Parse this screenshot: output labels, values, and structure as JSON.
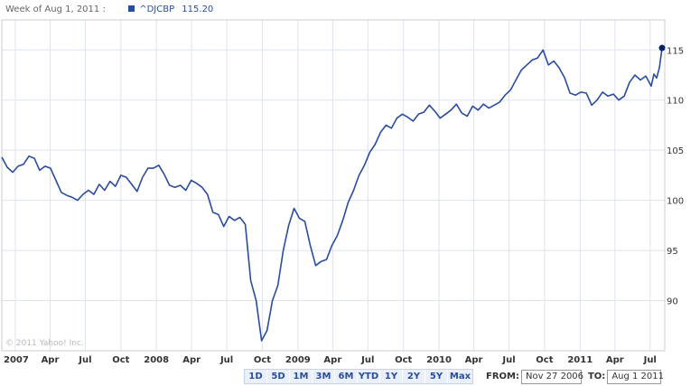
{
  "header": {
    "week_label": "Week of Aug 1, 2011 :",
    "legend_name": "^DJCBP",
    "legend_value": "115.20"
  },
  "copyright": "© 2011 Yahoo! Inc.",
  "colors": {
    "series": "#2a4c9e",
    "grid": "#dde3ef",
    "button_bg": "#eaf0fa",
    "button_text": "#2a4c9e"
  },
  "range_buttons": [
    "1D",
    "5D",
    "1M",
    "3M",
    "6M",
    "YTD",
    "1Y",
    "2Y",
    "5Y",
    "Max"
  ],
  "date_range": {
    "from_label": "FROM:",
    "from_value": "Nov 27 2006",
    "to_label": "TO:",
    "to_value": "Aug 1 2011"
  },
  "chart_data": {
    "type": "line",
    "title": "",
    "xlabel": "",
    "ylabel": "",
    "grid": true,
    "ylim": [
      85,
      118
    ],
    "yticks": [
      90,
      95,
      100,
      105,
      110,
      115
    ],
    "xlim": [
      "2006-11-27",
      "2011-08-08"
    ],
    "xticks": [
      {
        "label": "2007",
        "date": "2007-01-01"
      },
      {
        "label": "Apr",
        "date": "2007-04-01"
      },
      {
        "label": "Jul",
        "date": "2007-07-01"
      },
      {
        "label": "Oct",
        "date": "2007-10-01"
      },
      {
        "label": "2008",
        "date": "2008-01-01"
      },
      {
        "label": "Apr",
        "date": "2008-04-01"
      },
      {
        "label": "Jul",
        "date": "2008-07-01"
      },
      {
        "label": "Oct",
        "date": "2008-10-01"
      },
      {
        "label": "2009",
        "date": "2009-01-01"
      },
      {
        "label": "Apr",
        "date": "2009-04-01"
      },
      {
        "label": "Jul",
        "date": "2009-07-01"
      },
      {
        "label": "Oct",
        "date": "2009-10-01"
      },
      {
        "label": "2010",
        "date": "2010-01-01"
      },
      {
        "label": "Apr",
        "date": "2010-04-01"
      },
      {
        "label": "Jul",
        "date": "2010-07-01"
      },
      {
        "label": "Oct",
        "date": "2010-10-01"
      },
      {
        "label": "2011",
        "date": "2011-01-01"
      },
      {
        "label": "Apr",
        "date": "2011-04-01"
      },
      {
        "label": "Jul",
        "date": "2011-07-01"
      }
    ],
    "series": [
      {
        "name": "^DJCBP",
        "points": [
          [
            "2006-11-27",
            104.3
          ],
          [
            "2006-12-11",
            103.3
          ],
          [
            "2006-12-25",
            102.8
          ],
          [
            "2007-01-08",
            103.4
          ],
          [
            "2007-01-22",
            103.6
          ],
          [
            "2007-02-05",
            104.4
          ],
          [
            "2007-02-19",
            104.2
          ],
          [
            "2007-03-05",
            103.0
          ],
          [
            "2007-03-19",
            103.4
          ],
          [
            "2007-04-02",
            103.2
          ],
          [
            "2007-04-16",
            102.0
          ],
          [
            "2007-04-30",
            100.8
          ],
          [
            "2007-05-14",
            100.5
          ],
          [
            "2007-05-28",
            100.3
          ],
          [
            "2007-06-11",
            100.0
          ],
          [
            "2007-06-25",
            100.6
          ],
          [
            "2007-07-09",
            101.0
          ],
          [
            "2007-07-23",
            100.6
          ],
          [
            "2007-08-06",
            101.6
          ],
          [
            "2007-08-20",
            101.0
          ],
          [
            "2007-09-03",
            101.9
          ],
          [
            "2007-09-17",
            101.4
          ],
          [
            "2007-10-01",
            102.5
          ],
          [
            "2007-10-15",
            102.3
          ],
          [
            "2007-10-29",
            101.6
          ],
          [
            "2007-11-12",
            100.9
          ],
          [
            "2007-11-26",
            102.3
          ],
          [
            "2007-12-10",
            103.2
          ],
          [
            "2007-12-24",
            103.2
          ],
          [
            "2008-01-07",
            103.5
          ],
          [
            "2008-01-21",
            102.6
          ],
          [
            "2008-02-04",
            101.5
          ],
          [
            "2008-02-18",
            101.3
          ],
          [
            "2008-03-03",
            101.5
          ],
          [
            "2008-03-17",
            101.0
          ],
          [
            "2008-03-31",
            102.0
          ],
          [
            "2008-04-14",
            101.7
          ],
          [
            "2008-04-28",
            101.3
          ],
          [
            "2008-05-12",
            100.6
          ],
          [
            "2008-05-26",
            98.8
          ],
          [
            "2008-06-09",
            98.6
          ],
          [
            "2008-06-23",
            97.4
          ],
          [
            "2008-07-07",
            98.4
          ],
          [
            "2008-07-21",
            98.0
          ],
          [
            "2008-08-04",
            98.3
          ],
          [
            "2008-08-18",
            97.6
          ],
          [
            "2008-09-01",
            92.0
          ],
          [
            "2008-09-15",
            90.0
          ],
          [
            "2008-09-29",
            86.0
          ],
          [
            "2008-10-13",
            87.0
          ],
          [
            "2008-10-27",
            90.0
          ],
          [
            "2008-11-10",
            91.5
          ],
          [
            "2008-11-24",
            95.0
          ],
          [
            "2008-12-08",
            97.5
          ],
          [
            "2008-12-22",
            99.2
          ],
          [
            "2009-01-05",
            98.2
          ],
          [
            "2009-01-19",
            97.9
          ],
          [
            "2009-02-02",
            95.5
          ],
          [
            "2009-02-16",
            93.5
          ],
          [
            "2009-03-02",
            93.9
          ],
          [
            "2009-03-16",
            94.1
          ],
          [
            "2009-03-30",
            95.5
          ],
          [
            "2009-04-13",
            96.5
          ],
          [
            "2009-04-27",
            98.0
          ],
          [
            "2009-05-11",
            99.8
          ],
          [
            "2009-05-25",
            101.0
          ],
          [
            "2009-06-08",
            102.5
          ],
          [
            "2009-06-22",
            103.5
          ],
          [
            "2009-07-06",
            104.8
          ],
          [
            "2009-07-20",
            105.6
          ],
          [
            "2009-08-03",
            106.8
          ],
          [
            "2009-08-17",
            107.5
          ],
          [
            "2009-08-31",
            107.2
          ],
          [
            "2009-09-14",
            108.2
          ],
          [
            "2009-09-28",
            108.6
          ],
          [
            "2009-10-12",
            108.3
          ],
          [
            "2009-10-26",
            107.9
          ],
          [
            "2009-11-09",
            108.6
          ],
          [
            "2009-11-23",
            108.8
          ],
          [
            "2009-12-07",
            109.5
          ],
          [
            "2009-12-21",
            108.9
          ],
          [
            "2010-01-04",
            108.2
          ],
          [
            "2010-01-18",
            108.6
          ],
          [
            "2010-02-01",
            109.0
          ],
          [
            "2010-02-15",
            109.6
          ],
          [
            "2010-03-01",
            108.7
          ],
          [
            "2010-03-15",
            108.4
          ],
          [
            "2010-03-29",
            109.4
          ],
          [
            "2010-04-12",
            109.0
          ],
          [
            "2010-04-26",
            109.6
          ],
          [
            "2010-05-10",
            109.2
          ],
          [
            "2010-05-24",
            109.5
          ],
          [
            "2010-06-07",
            109.8
          ],
          [
            "2010-06-21",
            110.5
          ],
          [
            "2010-07-05",
            111.0
          ],
          [
            "2010-07-19",
            112.0
          ],
          [
            "2010-08-02",
            113.0
          ],
          [
            "2010-08-16",
            113.5
          ],
          [
            "2010-08-30",
            114.0
          ],
          [
            "2010-09-13",
            114.2
          ],
          [
            "2010-09-27",
            115.0
          ],
          [
            "2010-10-11",
            113.5
          ],
          [
            "2010-10-25",
            113.9
          ],
          [
            "2010-11-08",
            113.2
          ],
          [
            "2010-11-22",
            112.2
          ],
          [
            "2010-12-06",
            110.7
          ],
          [
            "2010-12-20",
            110.5
          ],
          [
            "2011-01-03",
            110.8
          ],
          [
            "2011-01-17",
            110.7
          ],
          [
            "2011-01-31",
            109.5
          ],
          [
            "2011-02-14",
            110.0
          ],
          [
            "2011-02-28",
            110.8
          ],
          [
            "2011-03-14",
            110.4
          ],
          [
            "2011-03-28",
            110.6
          ],
          [
            "2011-04-11",
            110.0
          ],
          [
            "2011-04-25",
            110.4
          ],
          [
            "2011-05-09",
            111.8
          ],
          [
            "2011-05-23",
            112.5
          ],
          [
            "2011-06-06",
            112.0
          ],
          [
            "2011-06-20",
            112.4
          ],
          [
            "2011-07-04",
            111.4
          ],
          [
            "2011-07-11",
            112.6
          ],
          [
            "2011-07-18",
            112.2
          ],
          [
            "2011-07-25",
            113.2
          ],
          [
            "2011-08-01",
            115.2
          ]
        ]
      }
    ]
  }
}
